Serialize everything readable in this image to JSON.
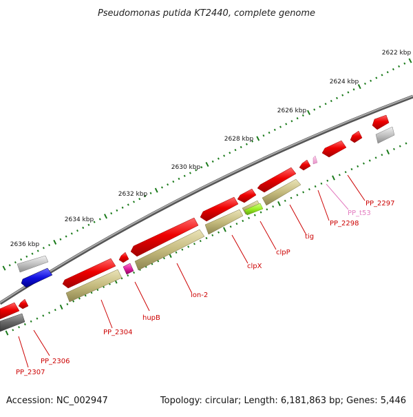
{
  "title": "Pseudomonas putida KT2440, complete genome",
  "footer": {
    "accession": "Accession: NC_002947",
    "summary": "Topology: circular; Length: 6,181,863 bp; Genes: 5,446"
  },
  "ruler_labels": [
    "2622 kbp",
    "2624 kbp",
    "2626 kbp",
    "2628 kbp",
    "2630 kbp",
    "2632 kbp",
    "2634 kbp",
    "2636 kbp"
  ],
  "gene_labels": [
    "PP_2297",
    "PP_t53",
    "PP_2298",
    "tig",
    "clpP",
    "clpX",
    "lon-2",
    "hupB",
    "PP_2304",
    "PP_2306",
    "PP_2307"
  ],
  "colors": {
    "backbone": "#7a7a7a",
    "ticks": "#1a7a1a",
    "gene_red": "#ee0000",
    "gene_olive": "#c8bf82",
    "gene_gray": "#c0c0c0",
    "gene_darkgray": "#6c6c6c",
    "gene_blue": "#1010e0",
    "gene_magenta": "#e020a0",
    "gene_lime": "#99ee22",
    "rna_pink": "#f0a0d0",
    "label_red": "#cc0000",
    "label_pink": "#e37cc0"
  }
}
